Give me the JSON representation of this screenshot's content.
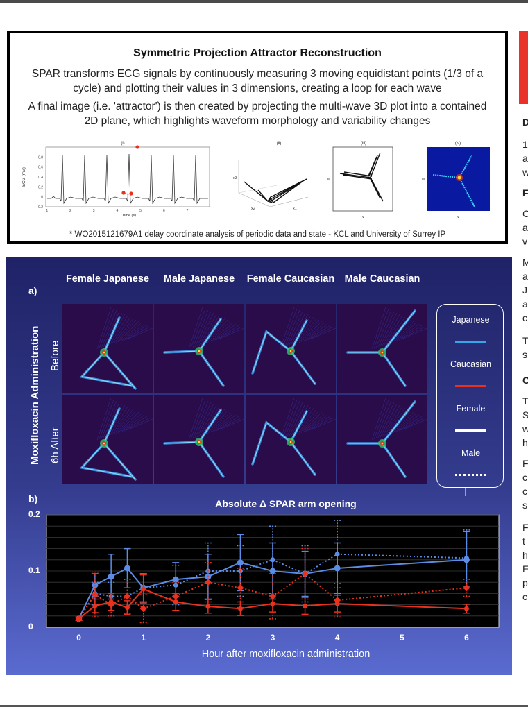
{
  "spar": {
    "title": "Symmetric Projection Attractor Reconstruction",
    "p1": "SPAR transforms ECG signals by continuously measuring 3 moving equidistant points (1/3 of a cycle) and plotting their values in 3 dimensions, creating a loop for each wave",
    "p2": "A final image (i.e. 'attractor') is then created by projecting the multi-wave 3D plot into a contained 2D plane, which highlights waveform morphology and variability changes",
    "panel_labels": [
      "(i)",
      "(ii)",
      "(iii)",
      "(iv)"
    ],
    "ecg_ylabel": "ECG (mV)",
    "ecg_xlabel": "Time (s)",
    "ecg_yticks": [
      "1",
      "0.8",
      "0.6",
      "0.4",
      "0.2",
      "0",
      "-0.2"
    ],
    "ecg_xticks": [
      "1",
      "2",
      "3",
      "4",
      "5",
      "6",
      "7"
    ],
    "axis_x3": "x3",
    "axis_x2": "x2",
    "axis_x1": "x1",
    "axis_w": "w",
    "axis_v": "v",
    "footnote": "* WO2015121679A1 delay coordinate analysis of periodic data and state - KCL and University of Surrey IP"
  },
  "right_col": {
    "fragments": [
      "D",
      "1",
      "a",
      "w",
      "F",
      "C",
      "a",
      "v",
      "M",
      "a",
      "J",
      "a",
      "c",
      "T",
      "s",
      "C",
      "T",
      "S",
      "w",
      "h",
      "F",
      "c",
      "c",
      "s",
      "F",
      "t",
      "h",
      "E",
      "p",
      "c"
    ]
  },
  "figure": {
    "panel_a": "a)",
    "panel_b": "b)",
    "columns": [
      "Female Japanese",
      "Male Japanese",
      "Female Caucasian",
      "Male Caucasian"
    ],
    "row_group_label": "Moxifloxacin Administration",
    "rows": [
      "Before",
      "6h After"
    ],
    "legend": [
      {
        "label": "Japanese",
        "color": "#35a7e8",
        "style": "solid"
      },
      {
        "label": "Caucasian",
        "color": "#e8321e",
        "style": "solid"
      },
      {
        "label": "Female",
        "color": "#ffffff",
        "style": "solid"
      },
      {
        "label": "Male",
        "color": "#ffffff",
        "style": "dotted"
      }
    ]
  },
  "chart_data": {
    "type": "line",
    "title": "Absolute Δ SPAR arm opening",
    "xlabel": "Hour after moxifloxacin administration",
    "ylabel": "",
    "xlim": [
      -0.5,
      6.5
    ],
    "ylim": [
      0,
      0.2
    ],
    "xticks": [
      "0",
      "1",
      "2",
      "3",
      "4",
      "5",
      "6"
    ],
    "yticks": [
      "0",
      "0.1",
      "0.2"
    ],
    "grid": true,
    "x": [
      0,
      0.25,
      0.5,
      0.75,
      1,
      1.5,
      2,
      2.5,
      3,
      3.5,
      4,
      6
    ],
    "series": [
      {
        "name": "Female Japanese",
        "color": "#5b8de8",
        "style": "solid",
        "values": [
          0.015,
          0.075,
          0.09,
          0.105,
          0.07,
          0.085,
          0.09,
          0.115,
          0.1,
          0.095,
          0.105,
          0.12
        ],
        "errors": [
          0.003,
          0.02,
          0.04,
          0.035,
          0.025,
          0.03,
          0.04,
          0.05,
          0.05,
          0.04,
          0.045,
          0.05
        ]
      },
      {
        "name": "Male Japanese",
        "color": "#5b8de8",
        "style": "dotted",
        "values": [
          0.015,
          0.06,
          0.055,
          0.055,
          0.07,
          0.075,
          0.1,
          0.1,
          0.12,
          0.095,
          0.13,
          0.123
        ],
        "errors": [
          0.003,
          0.02,
          0.025,
          0.03,
          0.025,
          0.035,
          0.05,
          0.045,
          0.06,
          0.05,
          0.06,
          0.05
        ]
      },
      {
        "name": "Female Caucasian",
        "color": "#e8321e",
        "style": "solid",
        "values": [
          0.015,
          0.038,
          0.045,
          0.035,
          0.068,
          0.045,
          0.037,
          0.033,
          0.042,
          0.038,
          0.042,
          0.033
        ],
        "errors": [
          0.003,
          0.012,
          0.015,
          0.012,
          0.025,
          0.015,
          0.012,
          0.012,
          0.015,
          0.015,
          0.015,
          0.008
        ]
      },
      {
        "name": "Male Caucasian",
        "color": "#e8321e",
        "style": "dotted",
        "values": [
          0.015,
          0.058,
          0.04,
          0.055,
          0.033,
          0.055,
          0.08,
          0.07,
          0.055,
          0.095,
          0.048,
          0.07
        ],
        "errors": [
          0.003,
          0.04,
          0.02,
          0.03,
          0.025,
          0.025,
          0.035,
          0.035,
          0.04,
          0.045,
          0.03,
          0.015
        ]
      }
    ]
  }
}
